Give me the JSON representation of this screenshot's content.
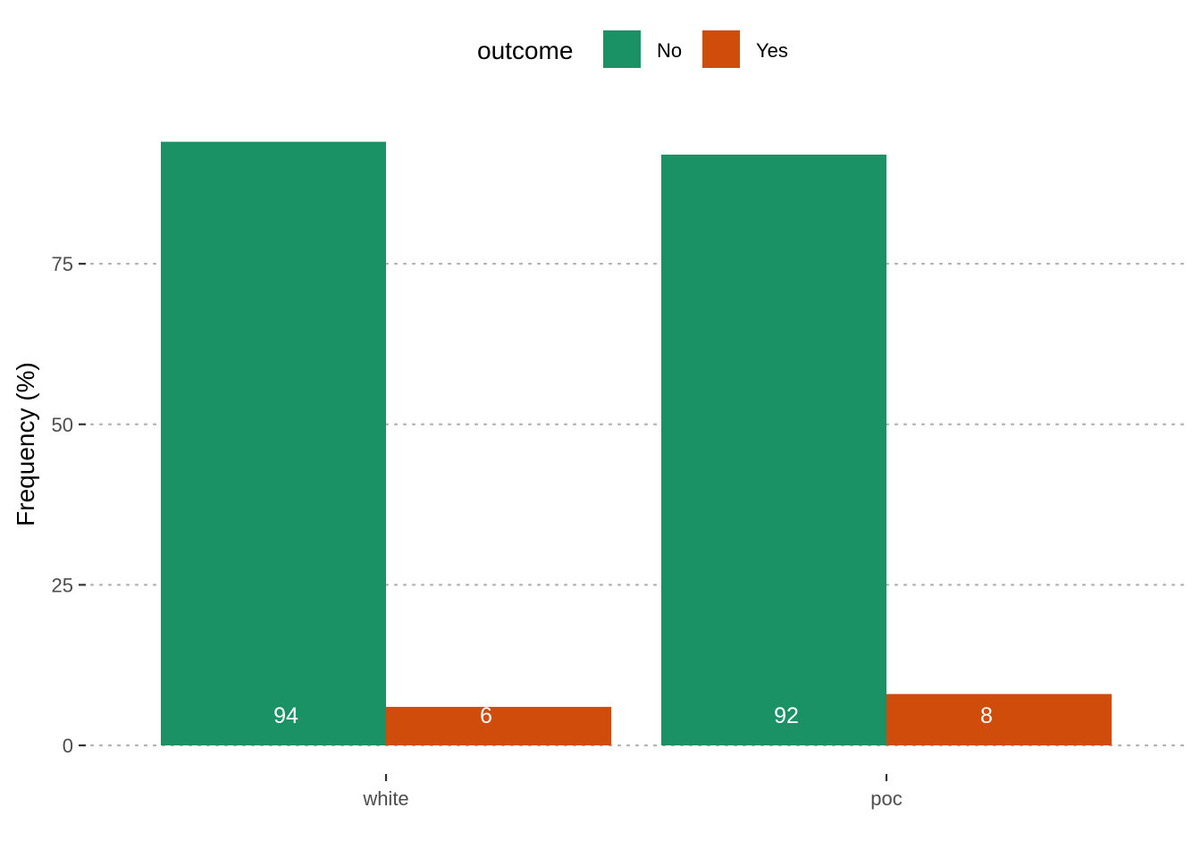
{
  "chart_data": {
    "type": "bar",
    "categories": [
      "white",
      "poc"
    ],
    "series": [
      {
        "name": "No",
        "values": [
          94,
          92
        ],
        "color": "#1b9166"
      },
      {
        "name": "Yes",
        "values": [
          6,
          8
        ],
        "color": "#d04c0b"
      }
    ],
    "data_labels": [
      [
        "94",
        "92"
      ],
      [
        "6",
        "8"
      ]
    ],
    "ylabel": "Frequency (%)",
    "xlabel": "",
    "yticks": [
      0,
      25,
      50,
      75
    ],
    "ylim": [
      0,
      100
    ],
    "grid": "horizontal dotted",
    "legend": {
      "title": "outcome",
      "position": "top",
      "entries": [
        "No",
        "Yes"
      ]
    }
  }
}
